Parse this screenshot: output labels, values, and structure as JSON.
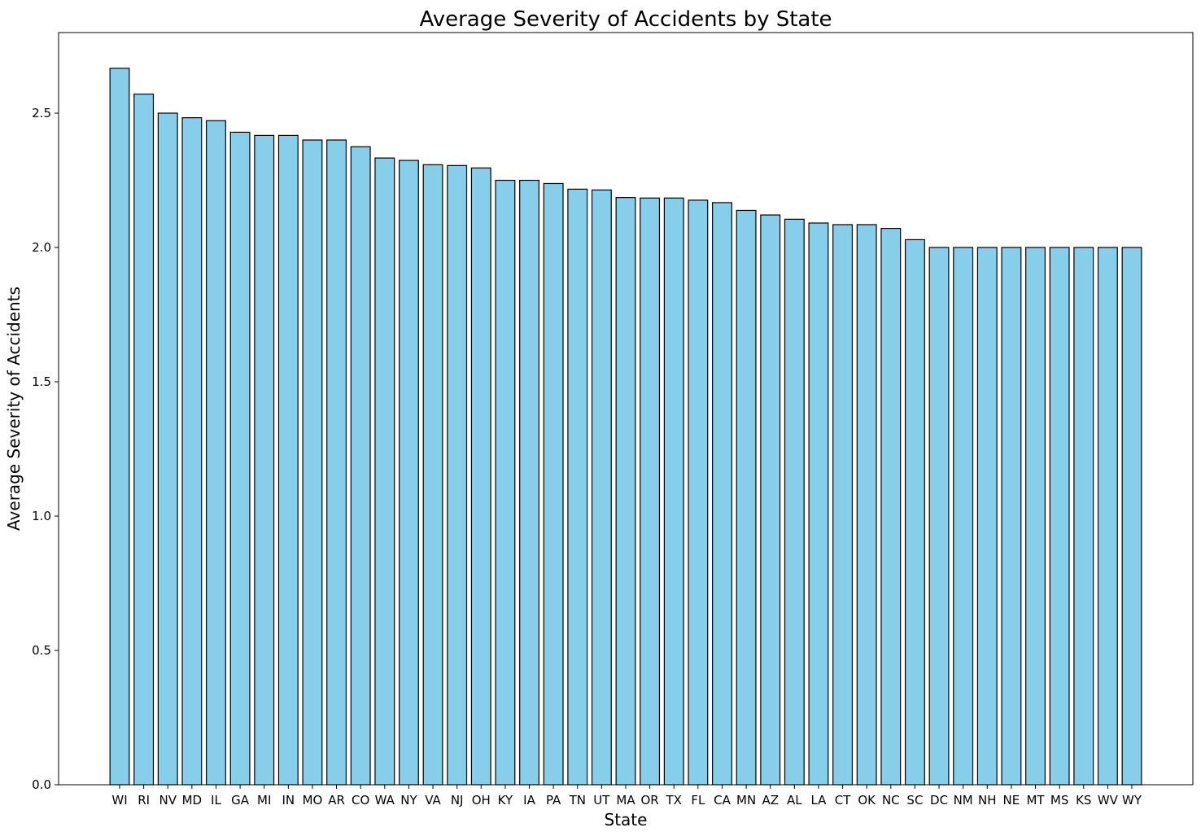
{
  "chart_data": {
    "type": "bar",
    "title": "Average Severity of Accidents by State",
    "xlabel": "State",
    "ylabel": "Average Severity of Accidents",
    "categories": [
      "WI",
      "RI",
      "NV",
      "MD",
      "IL",
      "GA",
      "MI",
      "IN",
      "MO",
      "AR",
      "CO",
      "WA",
      "NY",
      "VA",
      "NJ",
      "OH",
      "KY",
      "IA",
      "PA",
      "TN",
      "UT",
      "MA",
      "OR",
      "TX",
      "FL",
      "CA",
      "MN",
      "AZ",
      "AL",
      "LA",
      "CT",
      "OK",
      "NC",
      "SC",
      "DC",
      "NM",
      "NH",
      "NE",
      "MT",
      "MS",
      "KS",
      "WV",
      "WY"
    ],
    "values": [
      2.667,
      2.571,
      2.5,
      2.483,
      2.472,
      2.429,
      2.417,
      2.417,
      2.4,
      2.4,
      2.375,
      2.333,
      2.324,
      2.308,
      2.305,
      2.296,
      2.25,
      2.25,
      2.238,
      2.217,
      2.214,
      2.186,
      2.184,
      2.184,
      2.176,
      2.167,
      2.138,
      2.121,
      2.105,
      2.091,
      2.085,
      2.085,
      2.071,
      2.029,
      2.0,
      2.0,
      2.0,
      2.0,
      2.0,
      2.0,
      2.0,
      2.0,
      2.0
    ],
    "ylim": [
      0,
      2.8
    ],
    "yticks": [
      0.0,
      0.5,
      1.0,
      1.5,
      2.0,
      2.5
    ],
    "ytick_labels": [
      "0.0",
      "0.5",
      "1.0",
      "1.5",
      "2.0",
      "2.5"
    ],
    "grid": false,
    "colors": {
      "bar_fill": "#87CEEB",
      "bar_edge": "#000000"
    }
  }
}
